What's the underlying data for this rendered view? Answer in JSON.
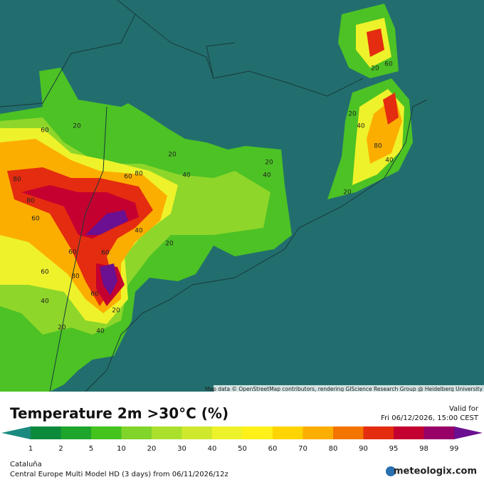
{
  "header": {
    "title": "Temperature 2m >30°C (%)",
    "valid_label": "Valid for",
    "valid_time": "Fri 06/12/2026, 15:00 CEST"
  },
  "legend": {
    "ticks": [
      1,
      2,
      5,
      10,
      20,
      30,
      40,
      50,
      60,
      70,
      80,
      90,
      95,
      98,
      99
    ],
    "colors": [
      "#1a8a80",
      "#0c8a3c",
      "#1ea52c",
      "#44c21e",
      "#80d42a",
      "#aae02c",
      "#cfe82e",
      "#eef22a",
      "#fff01a",
      "#ffd400",
      "#fcae00",
      "#f47400",
      "#e42c10",
      "#c40030",
      "#980068",
      "#6a1090"
    ]
  },
  "map": {
    "attribution": "Map data © OpenStreetMap contributors, rendering GIScience Research Group @ Heidelberg University",
    "contour_labels": [
      60,
      20,
      80,
      80,
      60,
      80,
      40,
      20,
      40,
      20,
      40,
      20,
      60,
      60,
      80,
      60,
      60,
      40,
      60,
      20,
      40,
      20,
      20,
      40,
      80,
      40,
      20,
      20,
      60
    ]
  },
  "footer": {
    "region": "Cataluña",
    "model": "Central Europe Multi Model HD (3 days) from 06/11/2026/12z",
    "brand": "meteologix.com"
  }
}
